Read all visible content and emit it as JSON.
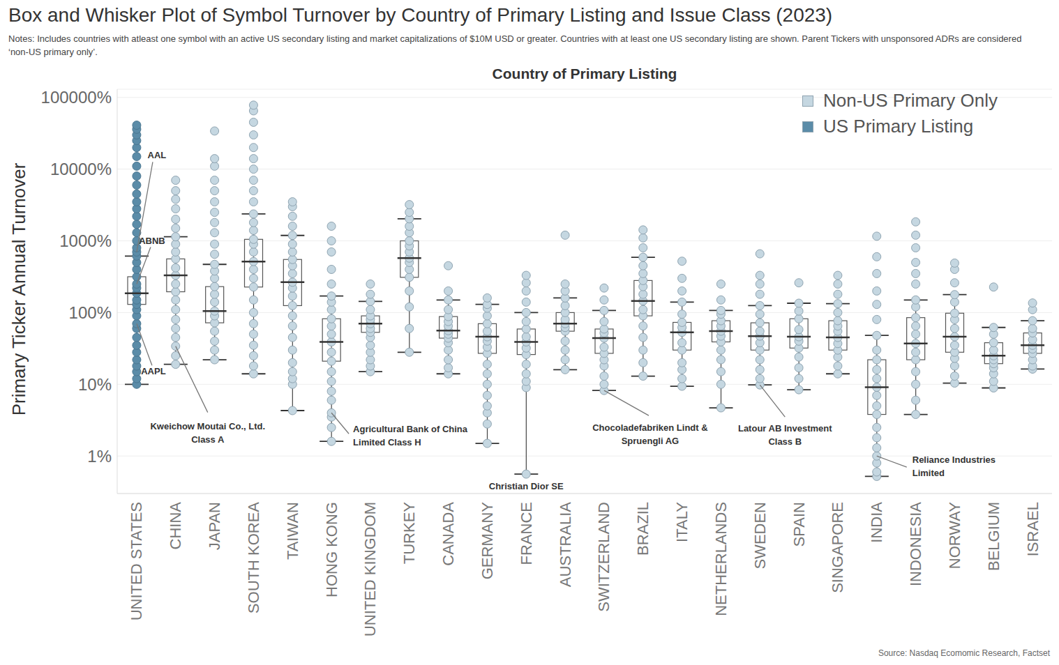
{
  "chart_data": {
    "type": "box",
    "title": "Box and Whisker Plot of Symbol Turnover by Country of Primary Listing and Issue Class (2023)",
    "subtitle": "Notes: Includes countries with atleast one symbol with an active US secondary listing and market capitalizations of $10M USD or greater. Countries with at least one US secondary listing are shown. Parent Tickers with unsponsored ADRs are considered ‘non-US primary only’.",
    "source": "Source: Nasdaq Ecomomic Research, Factset",
    "x_label": "Country of Primary Listing",
    "y_label": "Primary Ticker Annual Turnover",
    "log": "y",
    "grid": true,
    "legend": "top right",
    "ylim": [
      0.3,
      130000
    ],
    "yticks": [
      {
        "value": 1,
        "label": "1%"
      },
      {
        "value": 10,
        "label": "10%"
      },
      {
        "value": 100,
        "label": "100%"
      },
      {
        "value": 1000,
        "label": "1000%"
      },
      {
        "value": 10000,
        "label": "10000%"
      },
      {
        "value": 100000,
        "label": "100000%"
      }
    ],
    "series": [
      {
        "name": "Non-US Primary Only",
        "color": "#c5d7e1"
      },
      {
        "name": "US Primary Listing",
        "color": "#5b8ca8"
      }
    ],
    "categories": [
      "UNITED STATES",
      "CHINA",
      "JAPAN",
      "SOUTH KOREA",
      "TAIWAN",
      "HONG KONG",
      "UNITED KINGDOM",
      "TURKEY",
      "CANADA",
      "GERMANY",
      "FRANCE",
      "AUSTRALIA",
      "SWITZERLAND",
      "BRAZIL",
      "ITALY",
      "NETHERLANDS",
      "SWEDEN",
      "SPAIN",
      "SINGAPORE",
      "INDIA",
      "INDONESIA",
      "NORWAY",
      "BELGIUM",
      "ISRAEL"
    ],
    "boxes": [
      {
        "category": "UNITED STATES",
        "series": "US Primary Listing",
        "whisker_low": 10,
        "q1": 130,
        "median": 186,
        "q3": 316,
        "whisker_high": 614,
        "points": [
          10,
          12,
          15,
          18,
          22,
          28,
          35,
          45,
          60,
          70,
          90,
          110,
          130,
          150,
          186,
          220,
          250,
          316,
          400,
          500,
          614,
          700,
          800,
          1000,
          1300,
          1700,
          2200,
          2800,
          3500,
          4500,
          6000,
          8000,
          11000,
          15000,
          20000,
          25000,
          30000,
          36000,
          41000
        ]
      },
      {
        "category": "CHINA",
        "series": "Non-US Primary Only",
        "whisker_low": 19,
        "q1": 195,
        "median": 330,
        "q3": 560,
        "whisker_high": 1140,
        "points": [
          19,
          25,
          34,
          45,
          60,
          80,
          110,
          150,
          195,
          250,
          330,
          420,
          560,
          700,
          900,
          1140,
          1500,
          2000,
          2800,
          3800,
          5000,
          7000
        ]
      },
      {
        "category": "JAPAN",
        "series": "Non-US Primary Only",
        "whisker_low": 22,
        "q1": 72,
        "median": 105,
        "q3": 230,
        "whisker_high": 470,
        "points": [
          22,
          30,
          40,
          55,
          72,
          90,
          105,
          140,
          180,
          230,
          300,
          380,
          470,
          650,
          900,
          1300,
          1800,
          2500,
          3500,
          5000,
          7000,
          11000,
          14000,
          34000
        ]
      },
      {
        "category": "SOUTH KOREA",
        "series": "Non-US Primary Only",
        "whisker_low": 14,
        "q1": 227,
        "median": 515,
        "q3": 1050,
        "whisker_high": 2370,
        "points": [
          14,
          18,
          25,
          35,
          50,
          70,
          100,
          150,
          227,
          300,
          400,
          515,
          700,
          900,
          1050,
          1400,
          1800,
          2370,
          3500,
          5000,
          7000,
          10000,
          14000,
          20000,
          30000,
          45000,
          65000,
          78000
        ]
      },
      {
        "category": "TAIWAN",
        "series": "Non-US Primary Only",
        "whisker_low": 4.3,
        "q1": 125,
        "median": 265,
        "q3": 550,
        "whisker_high": 1190,
        "points": [
          4.3,
          10,
          12,
          15,
          20,
          30,
          45,
          65,
          90,
          125,
          170,
          220,
          265,
          350,
          450,
          550,
          700,
          900,
          1190,
          1600,
          2200,
          3000,
          3500
        ]
      },
      {
        "category": "HONG KONG",
        "series": "Non-US Primary Only",
        "whisker_low": 1.6,
        "q1": 21,
        "median": 39,
        "q3": 82,
        "whisker_high": 170,
        "points": [
          1.6,
          2.5,
          3.5,
          4,
          6,
          8,
          11,
          15,
          21,
          28,
          39,
          50,
          65,
          82,
          110,
          140,
          170,
          250,
          400,
          700,
          1000,
          1600
        ]
      },
      {
        "category": "UNITED KINGDOM",
        "series": "Non-US Primary Only",
        "whisker_low": 15,
        "q1": 53,
        "median": 70,
        "q3": 90,
        "whisker_high": 143,
        "points": [
          15,
          18,
          22,
          28,
          35,
          45,
          53,
          60,
          70,
          80,
          90,
          110,
          143,
          180,
          250
        ]
      },
      {
        "category": "TURKEY",
        "series": "Non-US Primary Only",
        "whisker_low": 28,
        "q1": 310,
        "median": 575,
        "q3": 1000,
        "whisker_high": 2030,
        "points": [
          28,
          60,
          120,
          200,
          310,
          400,
          500,
          575,
          700,
          850,
          1000,
          1300,
          1600,
          2030,
          2500,
          3200
        ]
      },
      {
        "category": "CANADA",
        "series": "Non-US Primary Only",
        "whisker_low": 14,
        "q1": 44,
        "median": 56,
        "q3": 88,
        "whisker_high": 150,
        "points": [
          14,
          17,
          22,
          30,
          38,
          44,
          50,
          56,
          65,
          75,
          88,
          110,
          150,
          200,
          450
        ]
      },
      {
        "category": "GERMANY",
        "series": "Non-US Primary Only",
        "whisker_low": 1.5,
        "q1": 27,
        "median": 46,
        "q3": 70,
        "whisker_high": 130,
        "points": [
          1.5,
          2.8,
          4,
          5,
          7,
          10,
          14,
          19,
          27,
          33,
          40,
          46,
          55,
          70,
          90,
          115,
          130,
          160
        ]
      },
      {
        "category": "FRANCE",
        "series": "Non-US Primary Only",
        "whisker_low": 0.56,
        "q1": 26,
        "median": 39,
        "q3": 59,
        "whisker_high": 100,
        "points": [
          0.56,
          9,
          11,
          14,
          19,
          26,
          32,
          39,
          46,
          59,
          75,
          100,
          140,
          200,
          260,
          330
        ]
      },
      {
        "category": "AUSTRALIA",
        "series": "Non-US Primary Only",
        "whisker_low": 16,
        "q1": 55,
        "median": 70,
        "q3": 100,
        "whisker_high": 160,
        "points": [
          16,
          22,
          30,
          40,
          55,
          62,
          70,
          80,
          100,
          125,
          160,
          200,
          250,
          1200
        ]
      },
      {
        "category": "SWITZERLAND",
        "series": "Non-US Primary Only",
        "whisker_low": 8.2,
        "q1": 27,
        "median": 44,
        "q3": 59,
        "whisker_high": 107,
        "points": [
          8.2,
          10,
          13,
          18,
          22,
          27,
          33,
          44,
          52,
          59,
          75,
          107,
          150,
          220
        ]
      },
      {
        "category": "BRAZIL",
        "series": "Non-US Primary Only",
        "whisker_low": 13,
        "q1": 90,
        "median": 145,
        "q3": 280,
        "whisker_high": 590,
        "points": [
          13,
          20,
          30,
          45,
          65,
          90,
          110,
          145,
          180,
          230,
          280,
          350,
          450,
          590,
          800,
          1100,
          1420
        ]
      },
      {
        "category": "ITALY",
        "series": "Non-US Primary Only",
        "whisker_low": 9.4,
        "q1": 30,
        "median": 53,
        "q3": 73,
        "whisker_high": 140,
        "points": [
          9.4,
          12,
          16,
          20,
          30,
          38,
          53,
          62,
          73,
          95,
          140,
          200,
          300,
          520
        ]
      },
      {
        "category": "NETHERLANDS",
        "series": "Non-US Primary Only",
        "whisker_low": 4.7,
        "q1": 39,
        "median": 55,
        "q3": 77,
        "whisker_high": 107,
        "points": [
          4.7,
          10,
          15,
          22,
          30,
          39,
          47,
          55,
          65,
          77,
          95,
          107,
          150,
          250
        ]
      },
      {
        "category": "SWEDEN",
        "series": "Non-US Primary Only",
        "whisker_low": 9.8,
        "q1": 30,
        "median": 47,
        "q3": 72,
        "whisker_high": 125,
        "points": [
          9.8,
          12,
          16,
          22,
          30,
          38,
          47,
          55,
          72,
          95,
          125,
          180,
          250,
          330,
          660
        ]
      },
      {
        "category": "SPAIN",
        "series": "Non-US Primary Only",
        "whisker_low": 8.4,
        "q1": 32,
        "median": 46,
        "q3": 82,
        "whisker_high": 135,
        "points": [
          8.4,
          12,
          17,
          24,
          32,
          40,
          46,
          58,
          82,
          105,
          135,
          260
        ]
      },
      {
        "category": "SINGAPORE",
        "series": "Non-US Primary Only",
        "whisker_low": 14,
        "q1": 30,
        "median": 45,
        "q3": 77,
        "whisker_high": 133,
        "points": [
          14,
          18,
          24,
          30,
          37,
          45,
          55,
          65,
          77,
          100,
          133,
          180,
          250,
          330
        ]
      },
      {
        "category": "INDIA",
        "series": "Non-US Primary Only",
        "whisker_low": 0.52,
        "q1": 3.8,
        "median": 9.1,
        "q3": 22,
        "whisker_high": 48,
        "points": [
          0.52,
          0.6,
          0.8,
          1,
          1.3,
          1.8,
          2.5,
          3.8,
          5,
          7,
          9.1,
          12,
          16,
          22,
          30,
          48,
          80,
          130,
          200,
          350,
          600,
          1160
        ]
      },
      {
        "category": "INDONESIA",
        "series": "Non-US Primary Only",
        "whisker_low": 3.8,
        "q1": 22,
        "median": 37,
        "q3": 85,
        "whisker_high": 150,
        "points": [
          3.8,
          6,
          10,
          15,
          22,
          28,
          37,
          50,
          65,
          85,
          120,
          150,
          250,
          350,
          500,
          800,
          1200,
          1840
        ]
      },
      {
        "category": "NORWAY",
        "series": "Non-US Primary Only",
        "whisker_low": 10.4,
        "q1": 28,
        "median": 46,
        "q3": 98,
        "whisker_high": 178,
        "points": [
          10.4,
          13,
          18,
          23,
          28,
          35,
          46,
          60,
          80,
          98,
          140,
          178,
          260,
          400,
          490
        ]
      },
      {
        "category": "BELGIUM",
        "series": "Non-US Primary Only",
        "whisker_low": 8.9,
        "q1": 19.4,
        "median": 25,
        "q3": 38,
        "whisker_high": 62,
        "points": [
          8.9,
          11,
          14,
          17,
          19.4,
          22,
          25,
          30,
          38,
          50,
          62,
          227
        ]
      },
      {
        "category": "ISRAEL",
        "series": "Non-US Primary Only",
        "whisker_low": 16.3,
        "q1": 27,
        "median": 35,
        "q3": 52,
        "whisker_high": 77,
        "points": [
          16.3,
          18,
          22,
          27,
          31,
          35,
          42,
          52,
          60,
          77,
          110,
          136
        ]
      }
    ],
    "annotations": [
      {
        "text": "AAL",
        "category": "UNITED STATES",
        "value": 700
      },
      {
        "text": "ABNB",
        "category": "UNITED STATES",
        "value": 250
      },
      {
        "text": "AAPL",
        "category": "UNITED STATES",
        "value": 70
      },
      {
        "text": "Kweichow Moutai Co., Ltd.\nClass A",
        "category": "CHINA",
        "value": 34
      },
      {
        "text": "Agricultural Bank of China\nLimited Class H",
        "category": "HONG KONG",
        "value": 4
      },
      {
        "text": "Christian Dior SE",
        "category": "FRANCE",
        "value": 0.56
      },
      {
        "text": "Chocoladefabriken Lindt &\nSpruengli AG",
        "category": "SWITZERLAND",
        "value": 8.2
      },
      {
        "text": "Latour AB Investment\nClass B",
        "category": "SWEDEN",
        "value": 9.8
      },
      {
        "text": "Reliance Industries\nLimited",
        "category": "INDIA",
        "value": 1
      }
    ]
  }
}
